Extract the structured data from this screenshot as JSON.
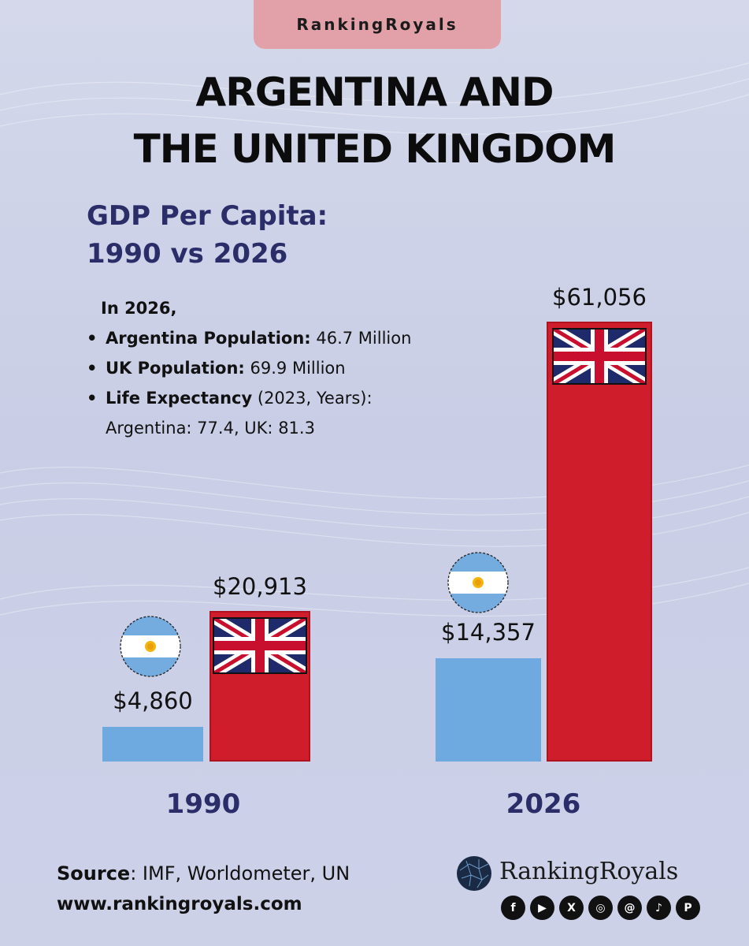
{
  "brand_tab": "RankingRoyals",
  "title_line1": "ARGENTINA AND",
  "title_line2": "THE UNITED KINGDOM",
  "subtitle_line1": "GDP Per Capita:",
  "subtitle_line2": "1990 vs 2026",
  "facts": {
    "heading": "In 2026,",
    "ar_pop_label": "Argentina Population:",
    "ar_pop_value": "46.7 Million",
    "uk_pop_label": "UK Population:",
    "uk_pop_value": "69.9 Million",
    "life_label": "Life Expectancy",
    "life_note": "(2023, Years):",
    "life_values": "Argentina: 77.4, UK: 81.3"
  },
  "chart_data": {
    "type": "bar",
    "title": "GDP Per Capita: 1990 vs 2026",
    "categories": [
      "1990",
      "2026"
    ],
    "series": [
      {
        "name": "Argentina",
        "values": [
          4860,
          14357
        ],
        "labels": [
          "$4,860",
          "$14,357"
        ],
        "color": "#6ea9df"
      },
      {
        "name": "United Kingdom",
        "values": [
          20913,
          61056
        ],
        "labels": [
          "$20,913",
          "$61,056"
        ],
        "color": "#cf1d2c"
      }
    ],
    "ylim": [
      0,
      61056
    ],
    "grid": false
  },
  "footer": {
    "source_label": "Source",
    "source_text": ": IMF, Worldometer, UN",
    "url": "www.rankingroyals.com",
    "logo_text": "RankingRoyals",
    "social_icons": [
      "facebook-icon",
      "youtube-icon",
      "x-icon",
      "instagram-icon",
      "threads-icon",
      "tiktok-icon",
      "pinterest-icon"
    ]
  }
}
